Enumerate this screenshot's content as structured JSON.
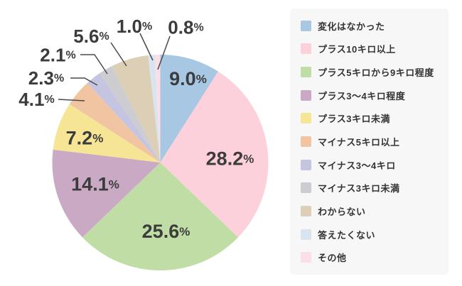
{
  "chart_data": {
    "type": "pie",
    "title": "",
    "unit": "%",
    "start_angle_deg": 0,
    "clockwise": true,
    "legend_position": "right",
    "legend_bg": "#f7f7f7",
    "text_color": "#3c3c3c",
    "legend_text_color": "#333333",
    "leader_line_color": "#4a4a4a",
    "slices": [
      {
        "label": "変化はなかった",
        "value": 9.0,
        "pct_label": "9.0",
        "color": "#a7c7e3",
        "label_placement": "inside"
      },
      {
        "label": "プラス10キロ以上",
        "value": 28.2,
        "pct_label": "28.2",
        "color": "#fcd1dc",
        "label_placement": "inside"
      },
      {
        "label": "プラス5キロから9キロ程度",
        "value": 25.6,
        "pct_label": "25.6",
        "color": "#c1dda6",
        "label_placement": "inside"
      },
      {
        "label": "プラス3〜4キロ程度",
        "value": 14.1,
        "pct_label": "14.1",
        "color": "#caa9c5",
        "label_placement": "inside"
      },
      {
        "label": "プラス3キロ未満",
        "value": 7.2,
        "pct_label": "7.2",
        "color": "#f6e595",
        "label_placement": "inside"
      },
      {
        "label": "マイナス5キロ以上",
        "value": 4.1,
        "pct_label": "4.1",
        "color": "#f1c5a2",
        "label_placement": "outside"
      },
      {
        "label": "マイナス3〜4キロ",
        "value": 2.3,
        "pct_label": "2.3",
        "color": "#c6c5e1",
        "label_placement": "outside"
      },
      {
        "label": "マイナス3キロ未満",
        "value": 2.1,
        "pct_label": "2.1",
        "color": "#cdcdd1",
        "label_placement": "outside"
      },
      {
        "label": "わからない",
        "value": 5.6,
        "pct_label": "5.6",
        "color": "#dccfb6",
        "label_placement": "outside"
      },
      {
        "label": "答えたくない",
        "value": 1.0,
        "pct_label": "1.0",
        "color": "#d8e5f0",
        "label_placement": "outside"
      },
      {
        "label": "その他",
        "value": 0.8,
        "pct_label": "0.8",
        "color": "#fcdee7",
        "label_placement": "outside"
      }
    ]
  }
}
